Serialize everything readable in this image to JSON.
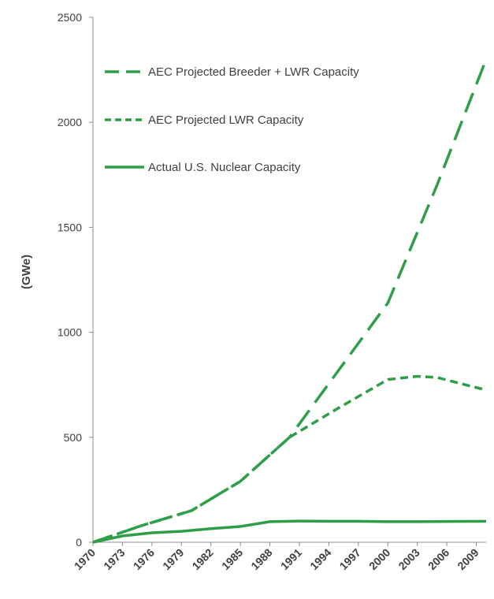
{
  "chart_data": {
    "type": "line",
    "ylabel": "(GWe)",
    "xlabel": "",
    "ylim": [
      0,
      2500
    ],
    "xlim": [
      1970,
      2010
    ],
    "y_ticks": [
      0,
      500,
      1000,
      1500,
      2000,
      2500
    ],
    "x_ticks": [
      1970,
      1973,
      1976,
      1979,
      1982,
      1985,
      1988,
      1991,
      1994,
      1997,
      2000,
      2003,
      2006,
      2009
    ],
    "grid": false,
    "legend_position": "top-left",
    "color": "#2e9e48",
    "series": [
      {
        "name": "AEC Projected Breeder + LWR Capacity",
        "style": "long-dash",
        "x": [
          1970,
          1975,
          1980,
          1985,
          1990,
          1995,
          2000,
          2005,
          2010
        ],
        "values": [
          0,
          80,
          150,
          290,
          500,
          820,
          1140,
          1700,
          2300
        ]
      },
      {
        "name": "AEC Projected LWR Capacity",
        "style": "short-dash",
        "x": [
          1970,
          1975,
          1980,
          1985,
          1990,
          1995,
          2000,
          2003,
          2005,
          2010
        ],
        "values": [
          0,
          80,
          150,
          290,
          500,
          640,
          775,
          790,
          785,
          725
        ]
      },
      {
        "name": "Actual U.S. Nuclear Capacity",
        "style": "solid",
        "x": [
          1970,
          1973,
          1976,
          1979,
          1982,
          1985,
          1988,
          1991,
          1994,
          1997,
          2000,
          2003,
          2006,
          2010
        ],
        "values": [
          0,
          30,
          45,
          52,
          65,
          75,
          98,
          101,
          100,
          100,
          98,
          98,
          99,
          100
        ]
      }
    ]
  }
}
